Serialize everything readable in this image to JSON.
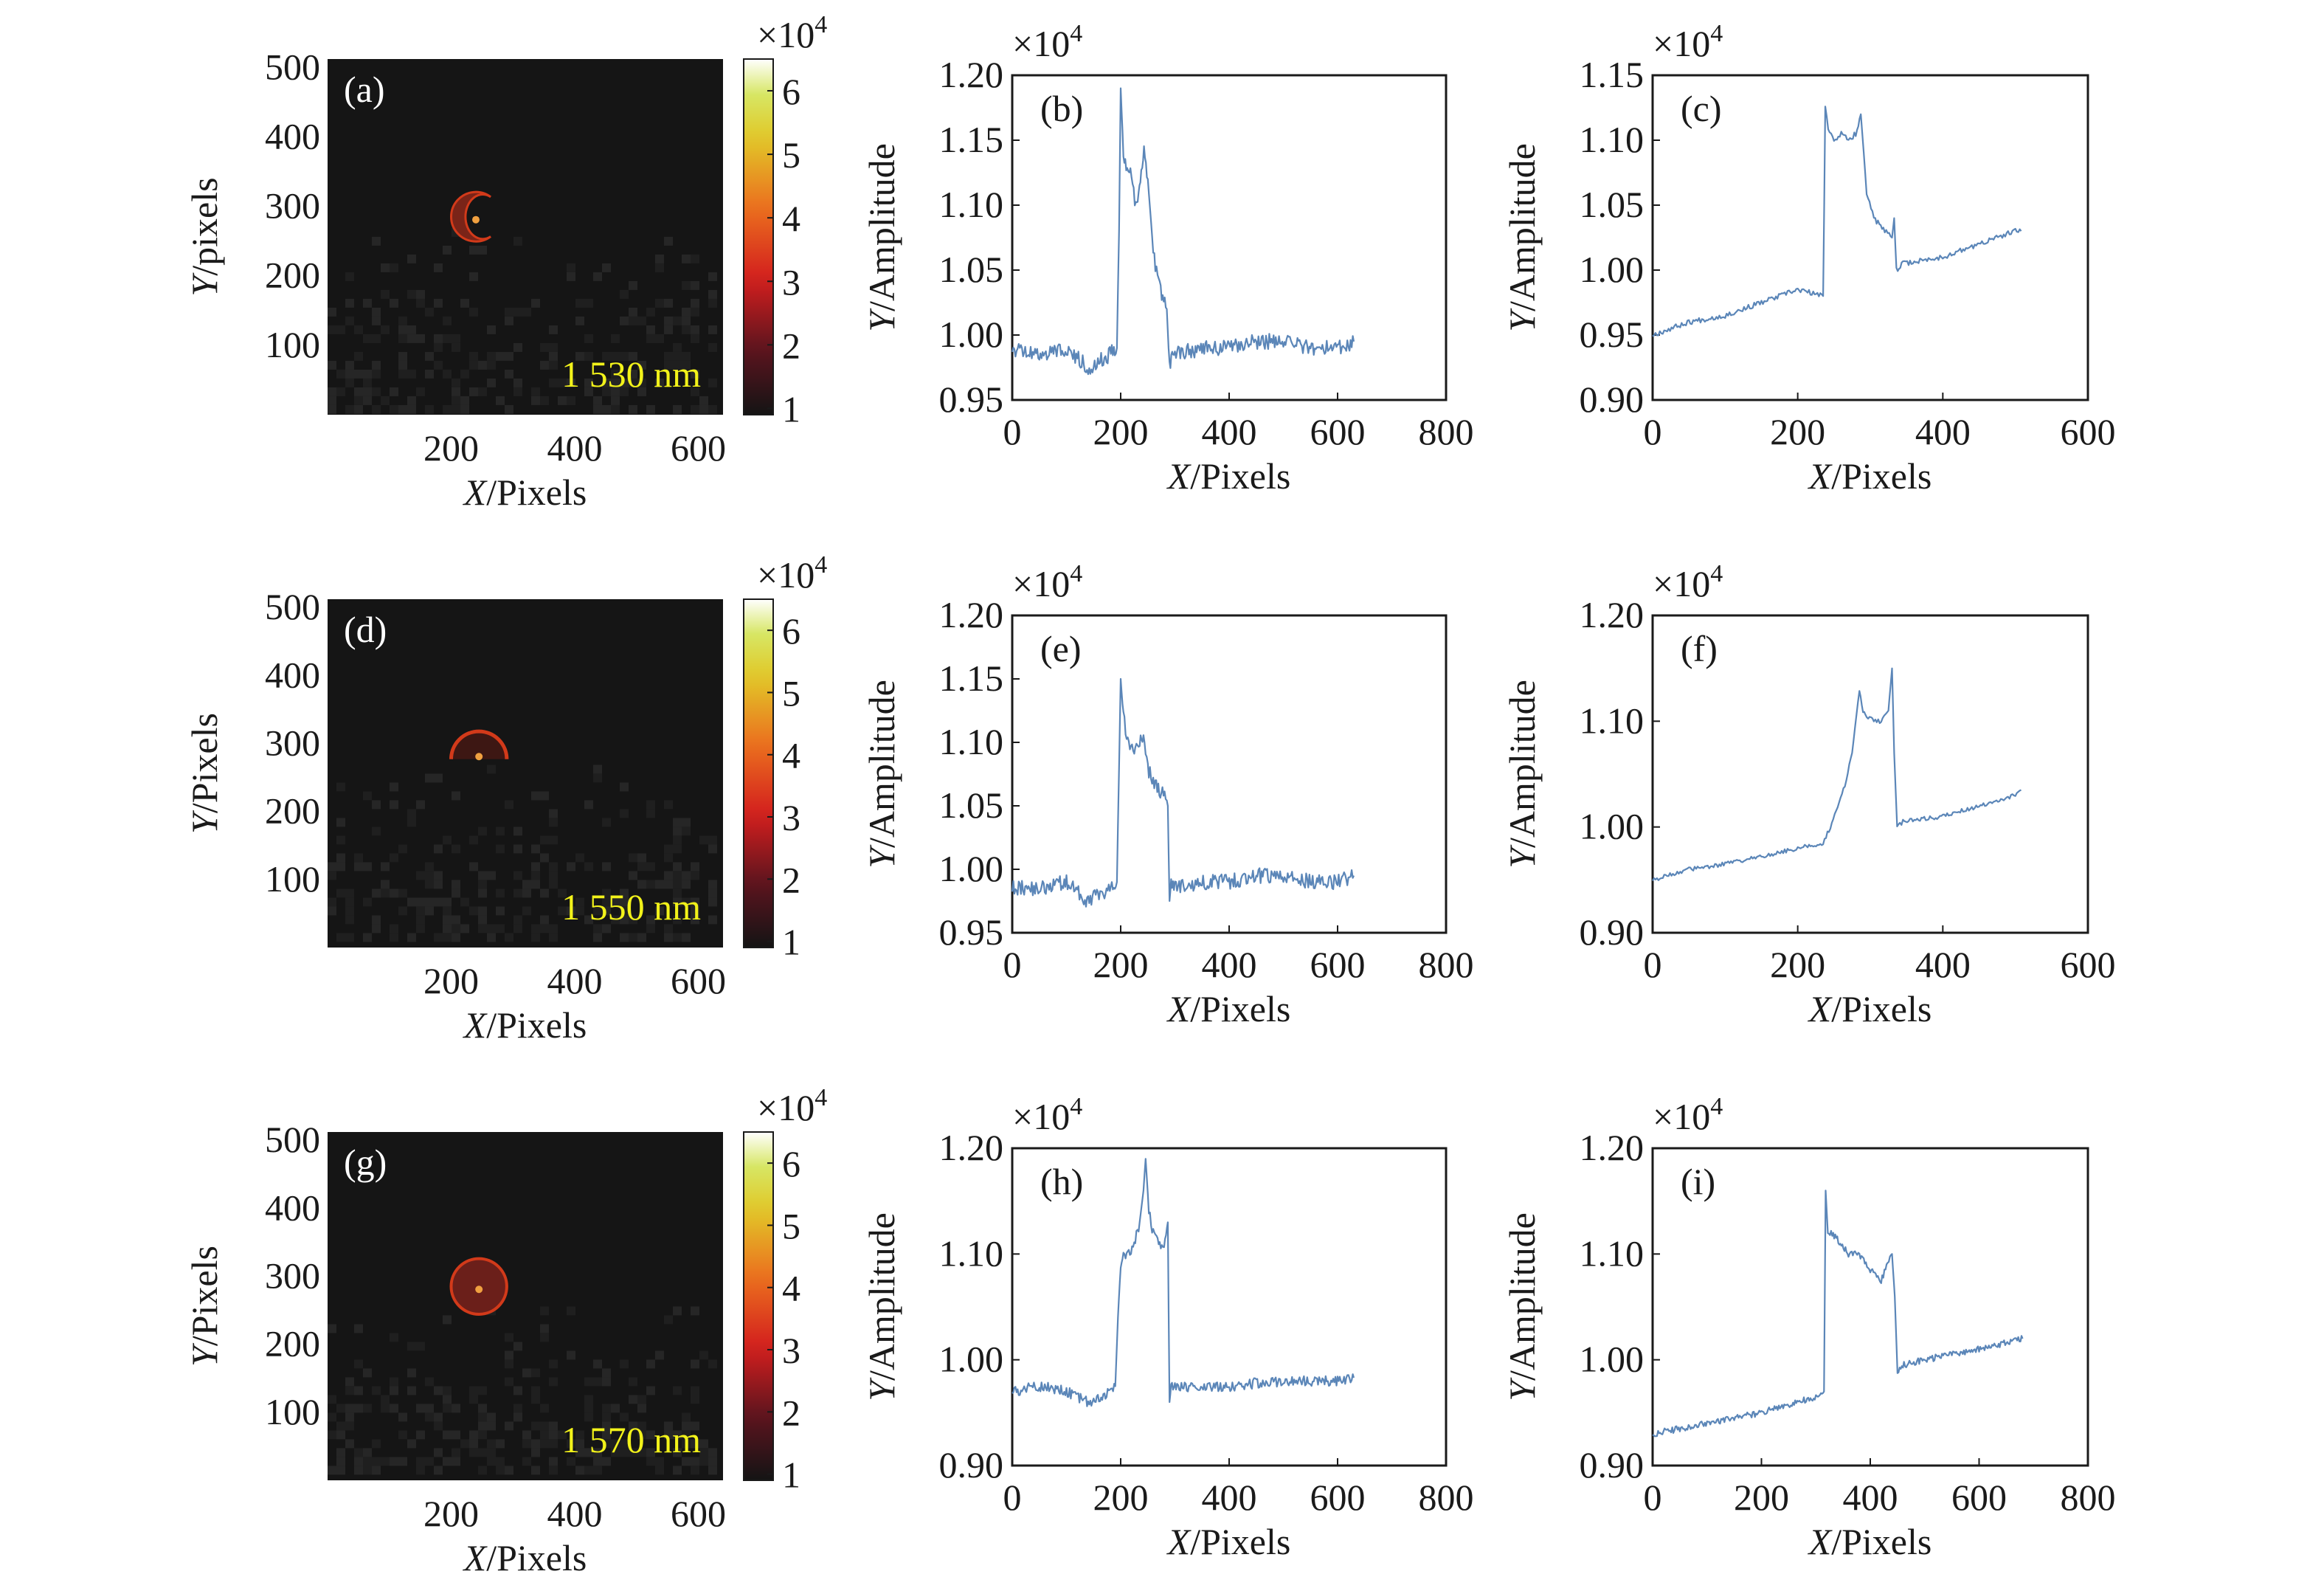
{
  "colors": {
    "background": "#ffffff",
    "axis": "#1a1a1a",
    "line": "#5b86b8",
    "line_dark": "#2f4f7a",
    "heatmap_bg": "#151515",
    "ring": "#d23a1a",
    "wavelength_text": "#f2f21a"
  },
  "chart_data": [
    {
      "panel_label": "(a)",
      "type": "heatmap",
      "wavelength_label": "1 530 nm",
      "xlabel_var": "X",
      "xlabel_unit": "/Pixels",
      "ylabel_var": "Y",
      "ylabel_unit": "/pixels",
      "xticks": [
        200,
        400,
        600
      ],
      "yticks": [
        100,
        200,
        300,
        400,
        500
      ],
      "xlim": [
        0,
        640
      ],
      "ylim": [
        0,
        512
      ],
      "spot": {
        "x": 240,
        "y": 285,
        "r": 40,
        "shape": "crescent"
      },
      "colorbar": {
        "multiplier_base": "×10",
        "multiplier_exp": "4",
        "ticks": [
          1,
          2,
          3,
          4,
          5,
          6
        ],
        "range": [
          0.9,
          6.5
        ]
      }
    },
    {
      "panel_label": "(b)",
      "type": "line",
      "xlabel_var": "X",
      "xlabel_unit": "/Pixels",
      "ylabel_var": "Y",
      "ylabel_unit": "/Amplitude",
      "multiplier_base": "×10",
      "multiplier_exp": "4",
      "xlim": [
        0,
        800
      ],
      "ylim": [
        0.95,
        1.2
      ],
      "xticks": [
        0,
        200,
        400,
        600,
        800
      ],
      "yticks": [
        0.95,
        1.0,
        1.05,
        1.1,
        1.15,
        1.2
      ],
      "ytick_decimals": 2,
      "series": [
        {
          "x": [
            0,
            50,
            100,
            140,
            180,
            193,
            197,
            200,
            205,
            212,
            220,
            228,
            233,
            238,
            243,
            250,
            260,
            270,
            285,
            290,
            295,
            300,
            350,
            400,
            450,
            500,
            550,
            600,
            630
          ],
          "y": [
            0.99,
            0.985,
            0.99,
            0.975,
            0.985,
            0.99,
            1.08,
            1.19,
            1.14,
            1.13,
            1.12,
            1.1,
            1.11,
            1.13,
            1.14,
            1.12,
            1.065,
            1.04,
            1.02,
            0.975,
            0.99,
            0.985,
            0.99,
            0.99,
            0.995,
            0.995,
            0.99,
            0.99,
            0.995
          ],
          "noise": 0.006
        }
      ]
    },
    {
      "panel_label": "(c)",
      "type": "line",
      "xlabel_var": "X",
      "xlabel_unit": "/Pixels",
      "ylabel_var": "Y",
      "ylabel_unit": "/Amplitude",
      "multiplier_base": "×10",
      "multiplier_exp": "4",
      "xlim": [
        0,
        600
      ],
      "ylim": [
        0.9,
        1.15
      ],
      "xticks": [
        0,
        200,
        400,
        600
      ],
      "yticks": [
        0.9,
        0.95,
        1.0,
        1.05,
        1.1,
        1.15
      ],
      "ytick_decimals": 2,
      "series": [
        {
          "x": [
            0,
            50,
            100,
            150,
            200,
            235,
            238,
            242,
            250,
            260,
            270,
            280,
            287,
            295,
            305,
            320,
            330,
            333,
            336,
            345,
            400,
            450,
            500,
            508
          ],
          "y": [
            0.95,
            0.96,
            0.965,
            0.975,
            0.985,
            0.98,
            1.125,
            1.11,
            1.1,
            1.105,
            1.1,
            1.105,
            1.12,
            1.06,
            1.04,
            1.03,
            1.025,
            1.04,
            1.0,
            1.005,
            1.01,
            1.02,
            1.03,
            1.03
          ],
          "noise": 0.002
        }
      ]
    },
    {
      "panel_label": "(d)",
      "type": "heatmap",
      "wavelength_label": "1 550 nm",
      "xlabel_var": "X",
      "xlabel_unit": "/Pixels",
      "ylabel_var": "Y",
      "ylabel_unit": "/Pixels",
      "xticks": [
        200,
        400,
        600
      ],
      "yticks": [
        100,
        200,
        300,
        400,
        500
      ],
      "xlim": [
        0,
        640
      ],
      "ylim": [
        0,
        512
      ],
      "spot": {
        "x": 245,
        "y": 285,
        "r": 45,
        "shape": "arc"
      },
      "colorbar": {
        "multiplier_base": "×10",
        "multiplier_exp": "4",
        "ticks": [
          1,
          2,
          3,
          4,
          5,
          6
        ],
        "range": [
          0.9,
          6.5
        ]
      }
    },
    {
      "panel_label": "(e)",
      "type": "line",
      "xlabel_var": "X",
      "xlabel_unit": "/Pixels",
      "ylabel_var": "Y",
      "ylabel_unit": "/Amplitude",
      "multiplier_base": "×10",
      "multiplier_exp": "4",
      "xlim": [
        0,
        800
      ],
      "ylim": [
        0.95,
        1.2
      ],
      "xticks": [
        0,
        200,
        400,
        600,
        800
      ],
      "yticks": [
        0.95,
        1.0,
        1.05,
        1.1,
        1.15,
        1.2
      ],
      "ytick_decimals": 2,
      "series": [
        {
          "x": [
            0,
            50,
            100,
            140,
            180,
            193,
            197,
            200,
            205,
            215,
            225,
            235,
            242,
            250,
            260,
            275,
            283,
            287,
            290,
            293,
            300,
            350,
            400,
            450,
            500,
            550,
            600,
            630
          ],
          "y": [
            0.985,
            0.985,
            0.99,
            0.975,
            0.985,
            0.99,
            1.08,
            1.15,
            1.12,
            1.1,
            1.09,
            1.1,
            1.105,
            1.08,
            1.07,
            1.06,
            1.06,
            1.05,
            0.975,
            0.99,
            0.985,
            0.99,
            0.99,
            0.995,
            0.995,
            0.99,
            0.99,
            0.995
          ],
          "noise": 0.006
        }
      ]
    },
    {
      "panel_label": "(f)",
      "type": "line",
      "xlabel_var": "X",
      "xlabel_unit": "/Pixels",
      "ylabel_var": "Y",
      "ylabel_unit": "/Amplitude",
      "multiplier_base": "×10",
      "multiplier_exp": "4",
      "xlim": [
        0,
        600
      ],
      "ylim": [
        0.9,
        1.2
      ],
      "xticks": [
        0,
        200,
        400,
        600
      ],
      "yticks": [
        0.9,
        1.0,
        1.1,
        1.2
      ],
      "ytick_decimals": 2,
      "series": [
        {
          "x": [
            0,
            50,
            100,
            150,
            200,
            235,
            245,
            255,
            265,
            275,
            285,
            290,
            295,
            305,
            315,
            325,
            330,
            333,
            337,
            345,
            400,
            450,
            500,
            508
          ],
          "y": [
            0.95,
            0.96,
            0.965,
            0.972,
            0.98,
            0.985,
            1.0,
            1.02,
            1.04,
            1.07,
            1.13,
            1.11,
            1.105,
            1.1,
            1.1,
            1.11,
            1.15,
            1.07,
            1.0,
            1.005,
            1.01,
            1.02,
            1.03,
            1.035
          ],
          "noise": 0.002
        }
      ]
    },
    {
      "panel_label": "(g)",
      "type": "heatmap",
      "wavelength_label": "1 570 nm",
      "xlabel_var": "X",
      "xlabel_unit": "/Pixels",
      "ylabel_var": "Y",
      "ylabel_unit": "/Pixels",
      "xticks": [
        200,
        400,
        600
      ],
      "yticks": [
        100,
        200,
        300,
        400,
        500
      ],
      "xlim": [
        0,
        640
      ],
      "ylim": [
        0,
        512
      ],
      "spot": {
        "x": 245,
        "y": 285,
        "r": 45,
        "shape": "disk"
      },
      "colorbar": {
        "multiplier_base": "×10",
        "multiplier_exp": "4",
        "ticks": [
          1,
          2,
          3,
          4,
          5,
          6
        ],
        "range": [
          0.9,
          6.5
        ]
      }
    },
    {
      "panel_label": "(h)",
      "type": "line",
      "xlabel_var": "X",
      "xlabel_unit": "/Pixels",
      "ylabel_var": "Y",
      "ylabel_unit": "/Amplitude",
      "multiplier_base": "×10",
      "multiplier_exp": "4",
      "xlim": [
        0,
        800
      ],
      "ylim": [
        0.9,
        1.2
      ],
      "xticks": [
        0,
        200,
        400,
        600,
        800
      ],
      "yticks": [
        0.9,
        1.0,
        1.1,
        1.2
      ],
      "ytick_decimals": 2,
      "series": [
        {
          "x": [
            0,
            50,
            100,
            140,
            180,
            190,
            195,
            200,
            205,
            215,
            225,
            235,
            242,
            246,
            252,
            260,
            270,
            280,
            287,
            290,
            293,
            300,
            350,
            400,
            450,
            500,
            550,
            600,
            630
          ],
          "y": [
            0.97,
            0.975,
            0.97,
            0.96,
            0.97,
            0.975,
            1.04,
            1.09,
            1.1,
            1.1,
            1.11,
            1.13,
            1.16,
            1.19,
            1.14,
            1.12,
            1.11,
            1.105,
            1.13,
            0.96,
            0.975,
            0.975,
            0.975,
            0.975,
            0.978,
            0.98,
            0.98,
            0.98,
            0.983
          ],
          "noise": 0.005
        }
      ]
    },
    {
      "panel_label": "(i)",
      "type": "line",
      "xlabel_var": "X",
      "xlabel_unit": "/Pixels",
      "ylabel_var": "Y",
      "ylabel_unit": "/Amplitude",
      "multiplier_base": "×10",
      "multiplier_exp": "4",
      "xlim": [
        0,
        800
      ],
      "ylim": [
        0.9,
        1.2
      ],
      "xticks": [
        0,
        200,
        400,
        600,
        800
      ],
      "yticks": [
        0.9,
        1.0,
        1.1,
        1.2
      ],
      "ytick_decimals": 2,
      "series": [
        {
          "x": [
            0,
            100,
            200,
            300,
            315,
            318,
            322,
            330,
            345,
            360,
            380,
            400,
            420,
            440,
            445,
            450,
            460,
            500,
            550,
            600,
            680
          ],
          "y": [
            0.93,
            0.94,
            0.95,
            0.965,
            0.97,
            1.16,
            1.12,
            1.12,
            1.11,
            1.1,
            1.1,
            1.085,
            1.075,
            1.1,
            1.06,
            0.99,
            0.995,
            1.0,
            1.005,
            1.01,
            1.02
          ],
          "noise": 0.003
        }
      ]
    }
  ]
}
